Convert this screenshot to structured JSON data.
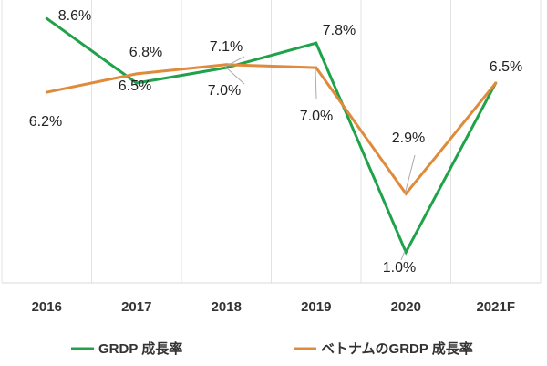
{
  "chart_data": {
    "type": "line",
    "categories": [
      "2016",
      "2017",
      "2018",
      "2019",
      "2020",
      "2021F"
    ],
    "series": [
      {
        "name": "GRDP 成長率",
        "color": "#1fa24a",
        "values": [
          8.6,
          6.5,
          7.0,
          7.8,
          1.0,
          6.5
        ],
        "labels": [
          "8.6%",
          "6.5%",
          "7.0%",
          "7.8%",
          "1.0%",
          "6.5%"
        ]
      },
      {
        "name": "ベトナムのGRDP 成長率",
        "color": "#e08a3c",
        "values": [
          6.2,
          6.8,
          7.1,
          7.0,
          2.9,
          6.5
        ],
        "labels": [
          "6.2%",
          "6.8%",
          "7.1%",
          "7.0%",
          "2.9%",
          ""
        ]
      }
    ],
    "ylim": [
      0,
      9.2
    ],
    "grid": "vertical",
    "legend": "bottom"
  }
}
